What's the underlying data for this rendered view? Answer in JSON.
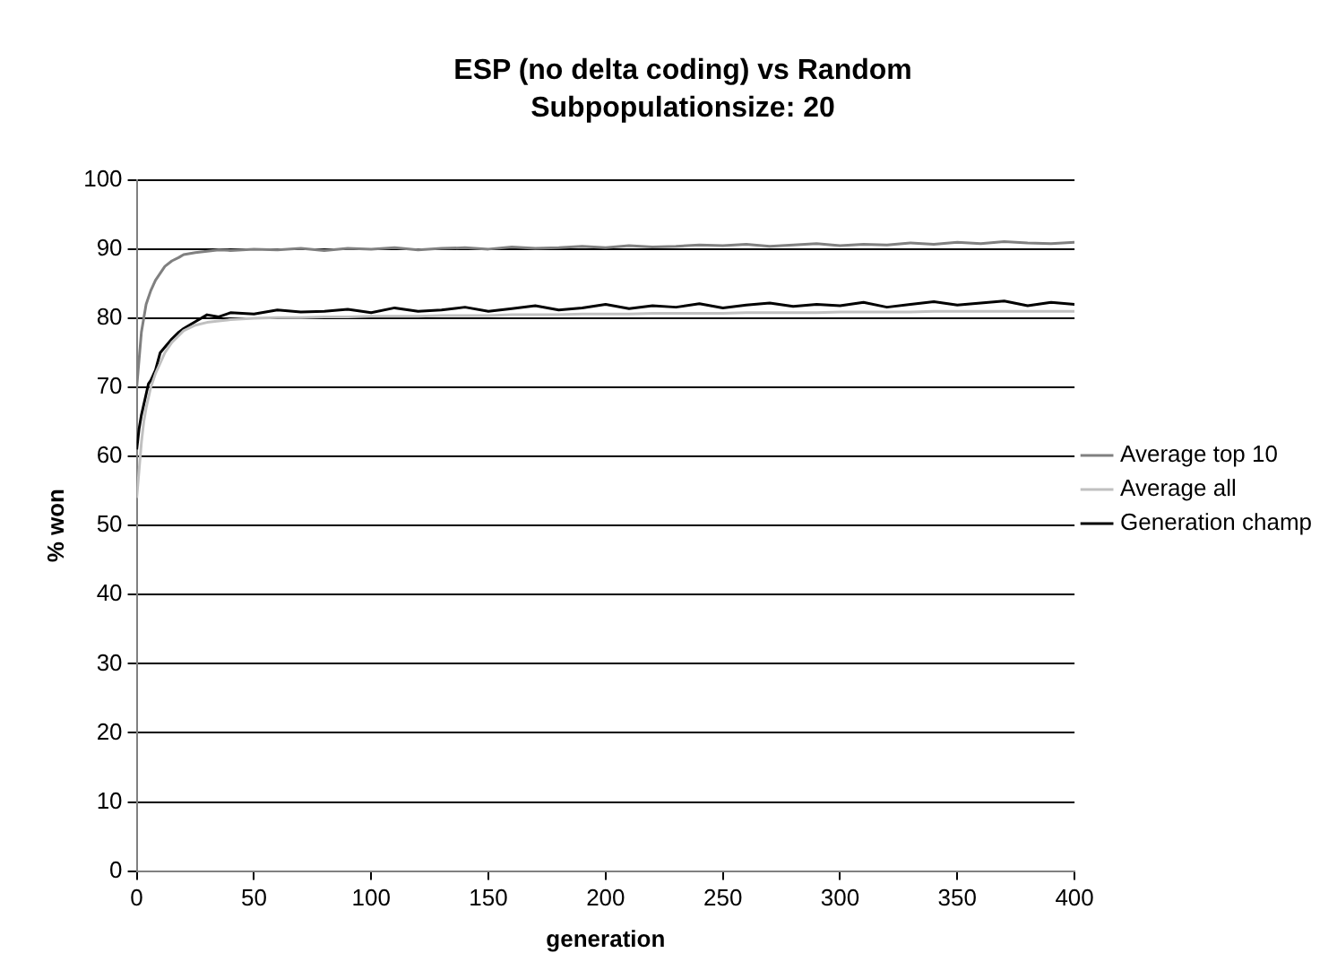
{
  "chart_data": {
    "type": "line",
    "title": "ESP (no delta coding) vs Random",
    "subtitle": "Subpopulationsize: 20",
    "xlabel": "generation",
    "ylabel": "% won",
    "x": [
      0,
      1,
      2,
      3,
      4,
      5,
      6,
      8,
      10,
      12,
      15,
      18,
      20,
      25,
      30,
      35,
      40,
      50,
      60,
      70,
      80,
      90,
      100,
      110,
      120,
      130,
      140,
      150,
      160,
      170,
      180,
      190,
      200,
      210,
      220,
      230,
      240,
      250,
      260,
      270,
      280,
      290,
      300,
      310,
      320,
      330,
      340,
      350,
      360,
      370,
      380,
      390,
      400
    ],
    "series": [
      {
        "name": "Average top 10",
        "color": "#808080",
        "values": [
          70,
          74,
          78,
          80,
          82,
          83,
          84,
          85.5,
          86.5,
          87.5,
          88.3,
          88.8,
          89.2,
          89.5,
          89.7,
          89.9,
          89.8,
          90,
          89.9,
          90.1,
          89.8,
          90.1,
          90,
          90.2,
          89.9,
          90.1,
          90.2,
          90,
          90.3,
          90.1,
          90.2,
          90.4,
          90.2,
          90.5,
          90.3,
          90.4,
          90.6,
          90.5,
          90.7,
          90.4,
          90.6,
          90.8,
          90.5,
          90.7,
          90.6,
          90.9,
          90.7,
          91,
          90.8,
          91.1,
          90.9,
          90.8,
          91
        ]
      },
      {
        "name": "Average all",
        "color": "#c0c0c0",
        "values": [
          54,
          58,
          62,
          65,
          67,
          68.5,
          70,
          72,
          73.5,
          75,
          76.5,
          77.5,
          78.2,
          79,
          79.4,
          79.6,
          79.8,
          80,
          80.1,
          80.1,
          80.2,
          80.2,
          80.3,
          80.3,
          80.3,
          80.4,
          80.4,
          80.4,
          80.5,
          80.5,
          80.5,
          80.6,
          80.6,
          80.6,
          80.7,
          80.7,
          80.7,
          80.7,
          80.8,
          80.8,
          80.8,
          80.8,
          80.9,
          80.9,
          80.9,
          80.9,
          81,
          81,
          81,
          81,
          81,
          81,
          81
        ]
      },
      {
        "name": "Generation champ",
        "color": "#000000",
        "values": [
          61,
          64,
          66,
          67.5,
          69,
          70.5,
          71,
          72.5,
          75,
          75.8,
          77,
          78,
          78.5,
          79.5,
          80.5,
          80.2,
          80.8,
          80.6,
          81.2,
          80.9,
          81,
          81.3,
          80.8,
          81.5,
          81,
          81.2,
          81.6,
          81,
          81.4,
          81.8,
          81.2,
          81.5,
          82,
          81.4,
          81.8,
          81.6,
          82.1,
          81.5,
          81.9,
          82.2,
          81.7,
          82,
          81.8,
          82.3,
          81.6,
          82,
          82.4,
          81.9,
          82.2,
          82.5,
          81.8,
          82.3,
          82
        ]
      }
    ],
    "xlim": [
      0,
      400
    ],
    "xticks": [
      0,
      50,
      100,
      150,
      200,
      250,
      300,
      350,
      400
    ],
    "ylim": [
      0,
      100
    ],
    "yticks": [
      0,
      10,
      20,
      30,
      40,
      50,
      60,
      70,
      80,
      90,
      100
    ],
    "grid": "y",
    "legend": "right",
    "marker": "none",
    "line_style": "solid"
  }
}
